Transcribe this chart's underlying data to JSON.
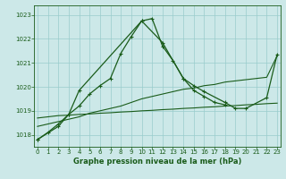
{
  "background_color": "#cce8e8",
  "grid_color": "#99cccc",
  "line_color": "#1a5c1a",
  "xlabel": "Graphe pression niveau de la mer (hPa)",
  "ylim": [
    1017.5,
    1023.4
  ],
  "xlim": [
    -0.3,
    23.3
  ],
  "yticks": [
    1018,
    1019,
    1020,
    1021,
    1022,
    1023
  ],
  "xticks": [
    0,
    1,
    2,
    3,
    4,
    5,
    6,
    7,
    8,
    9,
    10,
    11,
    12,
    13,
    14,
    15,
    16,
    17,
    18,
    19,
    20,
    21,
    22,
    23
  ],
  "line1_x": [
    0,
    1,
    2,
    3,
    4,
    5,
    6,
    7,
    8,
    9,
    10,
    11,
    12,
    13,
    14,
    15,
    16,
    17,
    18,
    19,
    20,
    21,
    22,
    23
  ],
  "line1_y": [
    1018.7,
    1018.75,
    1018.8,
    1018.82,
    1018.85,
    1018.87,
    1018.9,
    1018.92,
    1018.95,
    1018.97,
    1019.0,
    1019.02,
    1019.05,
    1019.07,
    1019.1,
    1019.12,
    1019.15,
    1019.17,
    1019.2,
    1019.22,
    1019.25,
    1019.27,
    1019.3,
    1019.32
  ],
  "line2_x": [
    0,
    1,
    2,
    3,
    4,
    5,
    6,
    7,
    8,
    9,
    10,
    11,
    12,
    13,
    14,
    15,
    16,
    17,
    18,
    19,
    20,
    21,
    22,
    23
  ],
  "line2_y": [
    1018.35,
    1018.45,
    1018.55,
    1018.65,
    1018.75,
    1018.9,
    1019.0,
    1019.1,
    1019.2,
    1019.35,
    1019.5,
    1019.6,
    1019.7,
    1019.8,
    1019.9,
    1019.95,
    1020.05,
    1020.1,
    1020.2,
    1020.25,
    1020.3,
    1020.35,
    1020.4,
    1021.3
  ],
  "line3_x": [
    0,
    1,
    2,
    3,
    4,
    5,
    6,
    7,
    8,
    9,
    10,
    11,
    12,
    13,
    14,
    15,
    16,
    17,
    18
  ],
  "line3_y": [
    1017.8,
    1018.1,
    1018.45,
    1018.85,
    1019.2,
    1019.7,
    1020.05,
    1020.35,
    1021.4,
    1022.1,
    1022.75,
    1022.85,
    1021.7,
    1021.1,
    1020.35,
    1019.85,
    1019.6,
    1019.35,
    1019.25
  ],
  "line4_x": [
    0,
    2,
    3,
    4,
    10,
    12,
    14,
    15,
    16,
    18,
    19,
    20,
    22,
    23
  ],
  "line4_y": [
    1017.8,
    1018.35,
    1018.85,
    1019.85,
    1022.75,
    1021.85,
    1020.35,
    1020.05,
    1019.8,
    1019.35,
    1019.1,
    1019.1,
    1019.55,
    1021.35
  ]
}
